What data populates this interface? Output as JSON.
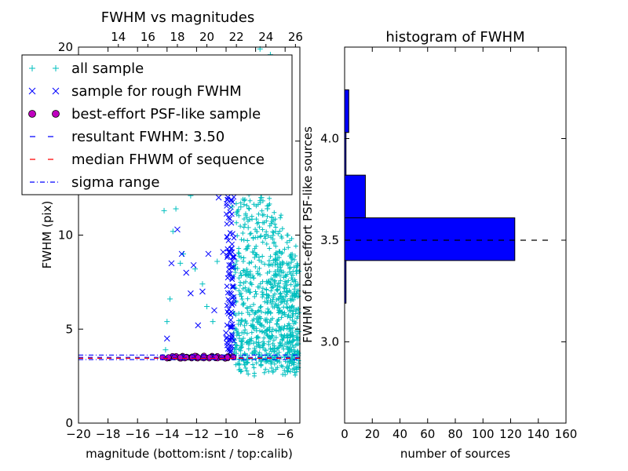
{
  "chart_data": [
    {
      "type": "scatter",
      "title": "FWHM vs magnitudes",
      "xlabel": "magnitude (bottom:isnt / top:calib)",
      "ylabel": "FWHM (pix)",
      "xlim": [
        -20,
        -5
      ],
      "ylim": [
        0,
        20
      ],
      "x_ticks": [
        -20,
        -18,
        -16,
        -14,
        -12,
        -10,
        -8,
        -6
      ],
      "x_tick_labels": [
        "−20",
        "−18",
        "−16",
        "−14",
        "−12",
        "−10",
        "−8",
        "−6"
      ],
      "y_ticks": [
        0,
        5,
        10,
        15,
        20
      ],
      "y_tick_labels": [
        "0",
        "5",
        "10",
        "15",
        "20"
      ],
      "top_axis_ticks": [
        14,
        16,
        18,
        20,
        22,
        24,
        26
      ],
      "top_axis_tick_labels": [
        "14",
        "16",
        "18",
        "20",
        "22",
        "24",
        "26"
      ],
      "top_axis_offset": 31.3,
      "legend_position": "top-left",
      "series": [
        {
          "name": "all sample",
          "marker": "+",
          "color": "#00bfbf",
          "points": [
            [
              -14.2,
              11.3
            ],
            [
              -13.6,
              10.2
            ],
            [
              -13.4,
              11.4
            ],
            [
              -13.1,
              8.5
            ],
            [
              -12.9,
              9.0
            ],
            [
              -12.4,
              12.1
            ],
            [
              -12.1,
              8.2
            ],
            [
              -11.6,
              7.4
            ],
            [
              -11.3,
              6.2
            ],
            [
              -10.9,
              5.4
            ],
            [
              -10.6,
              8.6
            ],
            [
              -14.0,
              5.4
            ],
            [
              -14.1,
              3.9
            ],
            [
              -13.8,
              6.6
            ],
            [
              -9.6,
              11.5
            ],
            [
              -9.4,
              18.4
            ],
            [
              -9.0,
              11.5
            ],
            [
              -8.8,
              13.2
            ],
            [
              -8.5,
              10.4
            ],
            [
              -8.2,
              9.1
            ],
            [
              -8.0,
              14.6
            ],
            [
              -7.6,
              12.0
            ],
            [
              -7.2,
              11.4
            ],
            [
              -6.8,
              10.8
            ],
            [
              -6.5,
              8.8
            ],
            [
              -6.0,
              7.4
            ],
            [
              -5.6,
              6.0
            ],
            [
              -5.2,
              4.4
            ],
            [
              -7.7,
              19.9
            ],
            [
              -7.0,
              19.6
            ],
            [
              -6.5,
              19.1
            ]
          ]
        },
        {
          "name": "sample for rough FWHM",
          "marker": "x",
          "color": "#0000ff",
          "points": [
            [
              -14.0,
              4.5
            ],
            [
              -13.7,
              8.5
            ],
            [
              -13.3,
              10.3
            ],
            [
              -13.0,
              9.0
            ],
            [
              -12.7,
              8.0
            ],
            [
              -12.2,
              8.4
            ],
            [
              -11.9,
              5.2
            ],
            [
              -11.6,
              7.0
            ],
            [
              -11.2,
              9.0
            ],
            [
              -10.8,
              6.0
            ],
            [
              -10.5,
              12.0
            ],
            [
              -10.2,
              9.1
            ],
            [
              -9.8,
              14.9
            ],
            [
              -9.7,
              12.3
            ],
            [
              -10.0,
              4.8
            ],
            [
              -9.6,
              6.3
            ],
            [
              -12.4,
              6.9
            ],
            [
              -11.0,
              13.6
            ]
          ]
        },
        {
          "name": "best-effort PSF-like sample",
          "marker": "o",
          "color": "#bf00bf",
          "points": [
            [
              -14.3,
              3.5
            ],
            [
              -13.9,
              3.5
            ],
            [
              -13.5,
              3.5
            ],
            [
              -13.1,
              3.5
            ],
            [
              -12.7,
              3.5
            ],
            [
              -12.3,
              3.5
            ],
            [
              -11.9,
              3.5
            ],
            [
              -11.5,
              3.5
            ],
            [
              -11.1,
              3.5
            ],
            [
              -10.7,
              3.5
            ],
            [
              -10.3,
              3.5
            ],
            [
              -9.9,
              3.5
            ],
            [
              -9.5,
              3.5
            ]
          ]
        },
        {
          "name": "resultant FWHM: 3.50",
          "kind": "hline",
          "y": 3.5,
          "style": "dashed",
          "color": "#0000ff"
        },
        {
          "name": "median FHWM of sequence",
          "kind": "hline",
          "y": 3.45,
          "style": "dashed",
          "color": "#ff0000"
        },
        {
          "name": "sigma range",
          "kind": "hline",
          "y_values": [
            3.38,
            3.62
          ],
          "style": "dashdot",
          "color": "#0000ff"
        }
      ]
    },
    {
      "type": "bar",
      "orientation": "horizontal",
      "title": "histogram of FWHM",
      "xlabel": "number of sources",
      "ylabel": "FWHM of best-effort PSF-like sources",
      "xlim": [
        0,
        160
      ],
      "ylim": [
        2.6,
        4.45
      ],
      "x_ticks": [
        0,
        20,
        40,
        60,
        80,
        100,
        120,
        140,
        160
      ],
      "x_tick_labels": [
        "0",
        "20",
        "40",
        "60",
        "80",
        "100",
        "120",
        "140",
        "160"
      ],
      "y_ticks": [
        3.0,
        3.5,
        4.0
      ],
      "y_tick_labels": [
        "3.0",
        "3.5",
        "4.0"
      ],
      "bins": [
        {
          "y0": 3.19,
          "y1": 3.4,
          "value": 1
        },
        {
          "y0": 3.4,
          "y1": 3.61,
          "value": 123
        },
        {
          "y0": 3.61,
          "y1": 3.82,
          "value": 15
        },
        {
          "y0": 3.82,
          "y1": 4.03,
          "value": 1
        },
        {
          "y0": 4.03,
          "y1": 4.24,
          "value": 3
        }
      ],
      "bar_color": "#0000ff",
      "reference_line": {
        "y": 3.5,
        "style": "dashed",
        "color": "#000000"
      }
    }
  ]
}
